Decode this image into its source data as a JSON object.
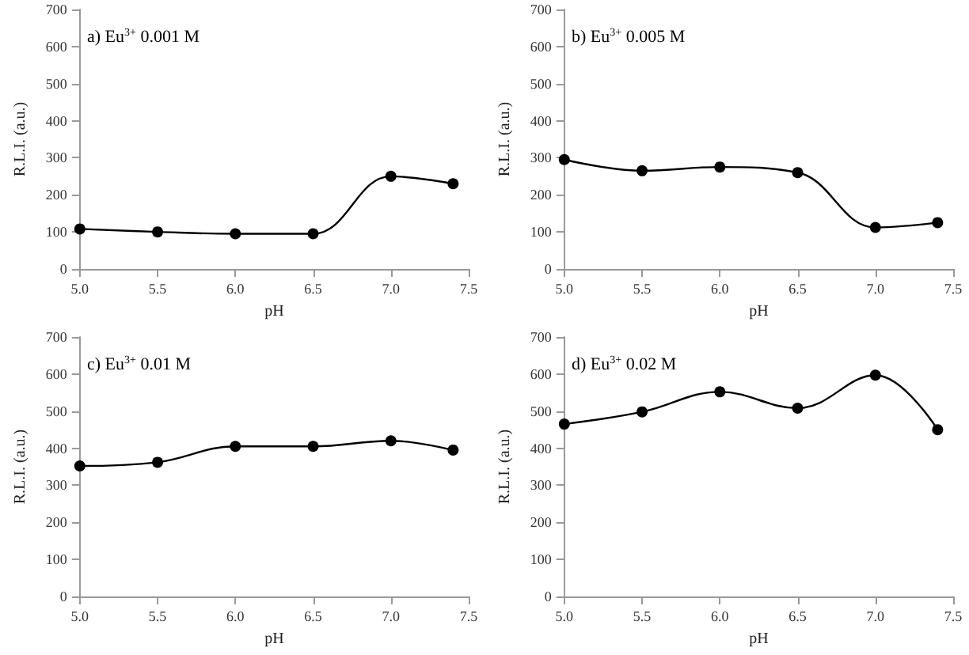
{
  "chart_data": [
    {
      "type": "line",
      "title": "a) Eu$^{3+}$ 0.001 M",
      "xlabel": "pH",
      "ylabel": "R.L.I. (a.u.)",
      "x": [
        5.0,
        5.5,
        6.0,
        6.5,
        7.0,
        7.4
      ],
      "series": [
        {
          "color": "#000000",
          "values": [
            108,
            100,
            95,
            95,
            250,
            230
          ]
        }
      ],
      "xlim": [
        5.0,
        7.5
      ],
      "xticks": [
        {
          "value": 5,
          "label": "5.0"
        },
        5.5,
        {
          "value": 6,
          "label": "6.0"
        },
        6.5,
        {
          "value": 7,
          "label": "7.0"
        },
        7.5
      ],
      "ylim": [
        0,
        700
      ],
      "yticks": [
        0,
        100,
        200,
        300,
        400,
        500,
        600,
        700
      ],
      "grid": false,
      "marker": "circle",
      "line_style": "solid"
    },
    {
      "type": "line",
      "title": "b) Eu$^{3+}$ 0.005 M",
      "xlabel": "pH",
      "ylabel": "R.L.I. (a.u.)",
      "x": [
        5.0,
        5.5,
        6.0,
        6.5,
        7.0,
        7.4
      ],
      "series": [
        {
          "color": "#000000",
          "values": [
            295,
            265,
            275,
            260,
            112,
            125
          ]
        }
      ],
      "xlim": [
        5.0,
        7.5
      ],
      "xticks": [
        {
          "value": 5,
          "label": "5.0"
        },
        5.5,
        {
          "value": 6,
          "label": "6.0"
        },
        6.5,
        {
          "value": 7,
          "label": "7.0"
        },
        7.5
      ],
      "ylim": [
        0,
        700
      ],
      "yticks": [
        0,
        100,
        200,
        300,
        400,
        500,
        600,
        700
      ],
      "grid": false,
      "marker": "circle",
      "line_style": "solid"
    },
    {
      "type": "line",
      "title": "c) Eu$^{3+}$ 0.01 M",
      "xlabel": "pH",
      "ylabel": "R.L.I. (a.u.)",
      "x": [
        5.0,
        5.5,
        6.0,
        6.5,
        7.0,
        7.4
      ],
      "series": [
        {
          "color": "#000000",
          "values": [
            352,
            362,
            405,
            405,
            420,
            395
          ]
        }
      ],
      "xlim": [
        5.0,
        7.5
      ],
      "xticks": [
        {
          "value": 5,
          "label": "5.0"
        },
        5.5,
        {
          "value": 6,
          "label": "6.0"
        },
        6.5,
        {
          "value": 7,
          "label": "7.0"
        },
        7.5
      ],
      "ylim": [
        0,
        700
      ],
      "yticks": [
        0,
        100,
        200,
        300,
        400,
        500,
        600,
        700
      ],
      "grid": false,
      "marker": "circle",
      "line_style": "solid"
    },
    {
      "type": "line",
      "title": "d) Eu$^{3+}$ 0.02 M",
      "xlabel": "pH",
      "ylabel": "R.L.I. (a.u.)",
      "x": [
        5.0,
        5.5,
        6.0,
        6.5,
        7.0,
        7.4
      ],
      "series": [
        {
          "color": "#000000",
          "values": [
            465,
            498,
            552,
            508,
            597,
            450
          ]
        }
      ],
      "xlim": [
        5.0,
        7.5
      ],
      "xticks": [
        {
          "value": 5,
          "label": "5.0"
        },
        5.5,
        {
          "value": 6,
          "label": "6.0"
        },
        6.5,
        {
          "value": 7,
          "label": "7.0"
        },
        7.5
      ],
      "ylim": [
        0,
        700
      ],
      "yticks": [
        0,
        100,
        200,
        300,
        400,
        500,
        600,
        700
      ],
      "grid": false,
      "marker": "circle",
      "line_style": "solid"
    }
  ]
}
